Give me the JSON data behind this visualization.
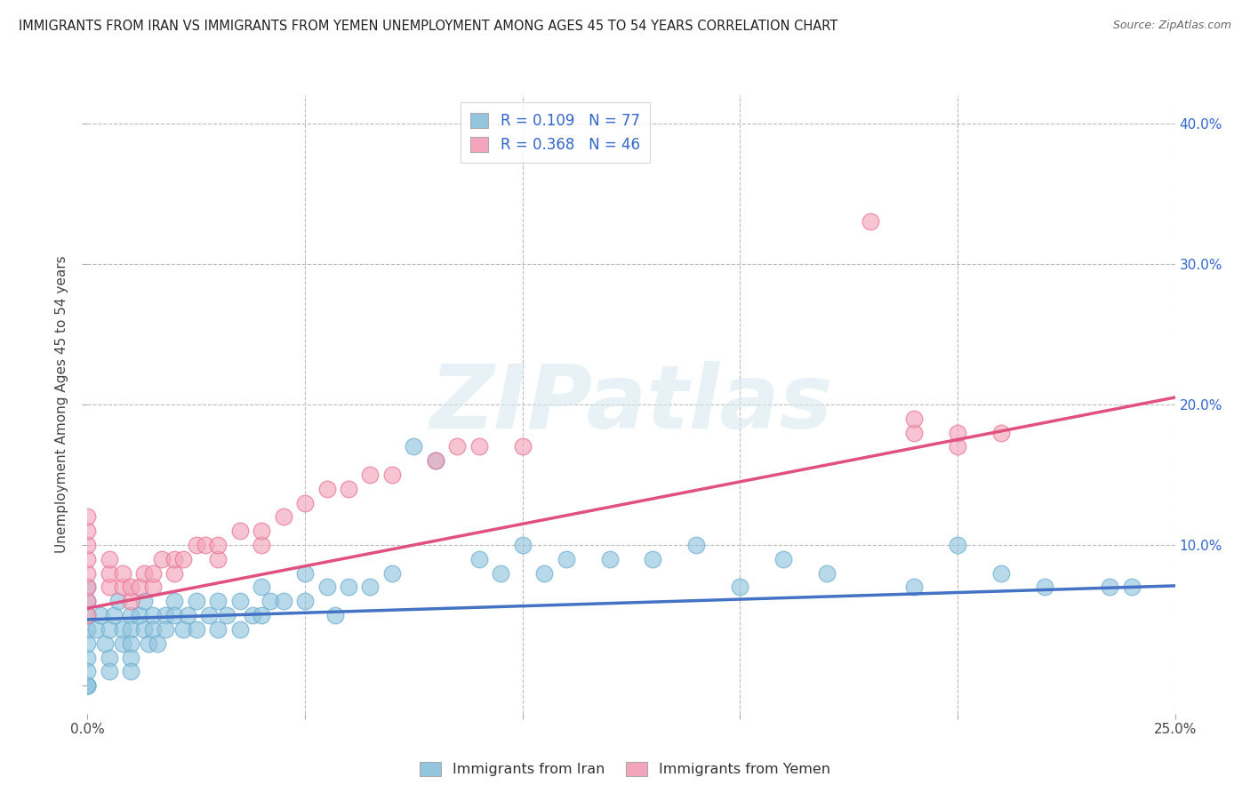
{
  "title": "IMMIGRANTS FROM IRAN VS IMMIGRANTS FROM YEMEN UNEMPLOYMENT AMONG AGES 45 TO 54 YEARS CORRELATION CHART",
  "source": "Source: ZipAtlas.com",
  "ylabel": "Unemployment Among Ages 45 to 54 years",
  "xlim": [
    0.0,
    0.25
  ],
  "ylim": [
    -0.02,
    0.42
  ],
  "iran_color": "#92C5DE",
  "iran_edge_color": "#6AACD0",
  "yemen_color": "#F4A5BC",
  "yemen_edge_color": "#E87090",
  "iran_line_color": "#4472C4",
  "yemen_line_color": "#E05080",
  "iran_R": 0.109,
  "iran_N": 77,
  "yemen_R": 0.368,
  "yemen_N": 46,
  "legend_label_color": "#3366CC",
  "background_color": "#FFFFFF",
  "grid_color": "#BBBBBB",
  "watermark": "ZIPatlas",
  "iran_line_x0": 0.0,
  "iran_line_y0": 0.047,
  "iran_line_x1": 0.25,
  "iran_line_y1": 0.071,
  "yemen_line_x0": 0.0,
  "yemen_line_y0": 0.055,
  "yemen_line_x1": 0.25,
  "yemen_line_y1": 0.205,
  "iran_x": [
    0.0,
    0.0,
    0.0,
    0.0,
    0.0,
    0.0,
    0.0,
    0.0,
    0.0,
    0.0,
    0.002,
    0.003,
    0.004,
    0.005,
    0.005,
    0.005,
    0.006,
    0.007,
    0.008,
    0.008,
    0.01,
    0.01,
    0.01,
    0.01,
    0.01,
    0.012,
    0.013,
    0.013,
    0.014,
    0.015,
    0.015,
    0.016,
    0.018,
    0.018,
    0.02,
    0.02,
    0.022,
    0.023,
    0.025,
    0.025,
    0.028,
    0.03,
    0.03,
    0.032,
    0.035,
    0.035,
    0.038,
    0.04,
    0.04,
    0.042,
    0.045,
    0.05,
    0.05,
    0.055,
    0.057,
    0.06,
    0.065,
    0.07,
    0.075,
    0.08,
    0.09,
    0.095,
    0.1,
    0.105,
    0.11,
    0.12,
    0.13,
    0.14,
    0.15,
    0.16,
    0.17,
    0.19,
    0.2,
    0.21,
    0.22,
    0.235,
    0.24
  ],
  "iran_y": [
    0.02,
    0.03,
    0.04,
    0.05,
    0.06,
    0.0,
    0.0,
    0.0,
    0.07,
    0.01,
    0.04,
    0.05,
    0.03,
    0.04,
    0.02,
    0.01,
    0.05,
    0.06,
    0.03,
    0.04,
    0.05,
    0.04,
    0.03,
    0.02,
    0.01,
    0.05,
    0.04,
    0.06,
    0.03,
    0.05,
    0.04,
    0.03,
    0.05,
    0.04,
    0.06,
    0.05,
    0.04,
    0.05,
    0.06,
    0.04,
    0.05,
    0.06,
    0.04,
    0.05,
    0.06,
    0.04,
    0.05,
    0.07,
    0.05,
    0.06,
    0.06,
    0.08,
    0.06,
    0.07,
    0.05,
    0.07,
    0.07,
    0.08,
    0.17,
    0.16,
    0.09,
    0.08,
    0.1,
    0.08,
    0.09,
    0.09,
    0.09,
    0.1,
    0.07,
    0.09,
    0.08,
    0.07,
    0.1,
    0.08,
    0.07,
    0.07,
    0.07
  ],
  "yemen_x": [
    0.0,
    0.0,
    0.0,
    0.0,
    0.0,
    0.0,
    0.0,
    0.0,
    0.005,
    0.005,
    0.005,
    0.008,
    0.008,
    0.01,
    0.01,
    0.012,
    0.013,
    0.015,
    0.015,
    0.017,
    0.02,
    0.02,
    0.022,
    0.025,
    0.027,
    0.03,
    0.03,
    0.035,
    0.04,
    0.04,
    0.045,
    0.05,
    0.055,
    0.06,
    0.065,
    0.07,
    0.08,
    0.085,
    0.09,
    0.1,
    0.18,
    0.19,
    0.19,
    0.2,
    0.2,
    0.21
  ],
  "yemen_y": [
    0.05,
    0.06,
    0.07,
    0.08,
    0.09,
    0.1,
    0.11,
    0.12,
    0.07,
    0.08,
    0.09,
    0.07,
    0.08,
    0.06,
    0.07,
    0.07,
    0.08,
    0.07,
    0.08,
    0.09,
    0.08,
    0.09,
    0.09,
    0.1,
    0.1,
    0.09,
    0.1,
    0.11,
    0.1,
    0.11,
    0.12,
    0.13,
    0.14,
    0.14,
    0.15,
    0.15,
    0.16,
    0.17,
    0.17,
    0.17,
    0.33,
    0.18,
    0.19,
    0.17,
    0.18,
    0.18
  ]
}
